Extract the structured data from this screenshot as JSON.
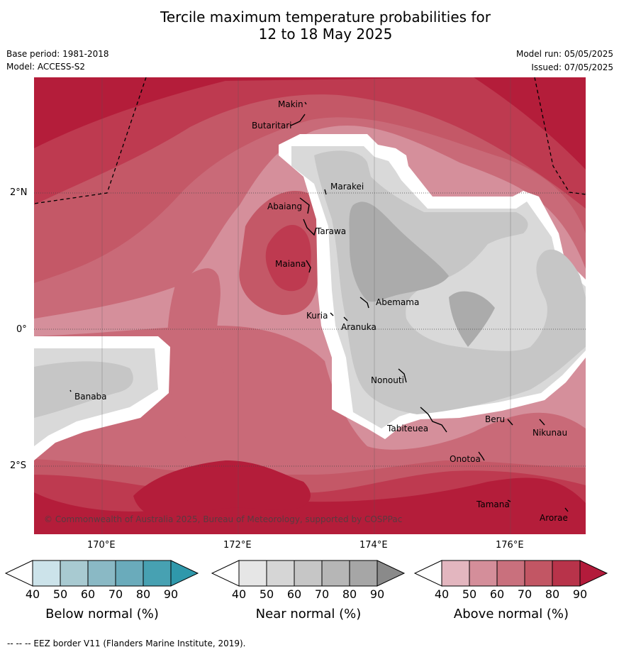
{
  "title_line1": "Tercile maximum temperature probabilities for",
  "title_line2": "12 to 18 May 2025",
  "base_period": "Base period: 1981-2018",
  "model": "Model: ACCESS-S2",
  "model_run": "Model run: 05/05/2025",
  "issued": "Issued: 07/05/2025",
  "lat_ticks": [
    "2°N",
    "0°",
    "2°S"
  ],
  "lon_ticks": [
    "170°E",
    "172°E",
    "174°E",
    "176°E"
  ],
  "places": [
    {
      "name": "Makin"
    },
    {
      "name": "Butaritari"
    },
    {
      "name": "Marakei"
    },
    {
      "name": "Abaiang"
    },
    {
      "name": "Tarawa"
    },
    {
      "name": "Maiana"
    },
    {
      "name": "Abemama"
    },
    {
      "name": "Kuria"
    },
    {
      "name": "Aranuka"
    },
    {
      "name": "Banaba"
    },
    {
      "name": "Nonouti"
    },
    {
      "name": "Tabiteuea"
    },
    {
      "name": "Beru"
    },
    {
      "name": "Nikunau"
    },
    {
      "name": "Onotoa"
    },
    {
      "name": "Tamana"
    },
    {
      "name": "Arorae"
    }
  ],
  "copyright": "© Commonwealth of Australia 2025, Bureau of Meteorology, supported by COSPPac",
  "colorbars": [
    {
      "title": "Below normal (%)",
      "ticks": [
        "40",
        "50",
        "60",
        "70",
        "80",
        "90"
      ],
      "colors": [
        "#ffffff",
        "#cce3ea",
        "#a8cad1",
        "#8ab9c5",
        "#6aabbb",
        "#47a1b2",
        "#2f98ab"
      ]
    },
    {
      "title": "Near normal (%)",
      "ticks": [
        "40",
        "50",
        "60",
        "70",
        "80",
        "90"
      ],
      "colors": [
        "#ffffff",
        "#e6e6e6",
        "#d6d6d6",
        "#c6c6c6",
        "#b6b6b6",
        "#a6a6a6",
        "#8a8a8a"
      ]
    },
    {
      "title": "Above normal (%)",
      "ticks": [
        "40",
        "50",
        "60",
        "70",
        "80",
        "90"
      ],
      "colors": [
        "#ffffff",
        "#e3b6bf",
        "#d48e9a",
        "#c9707d",
        "#c25664",
        "#b8334a",
        "#b31b3b"
      ]
    }
  ],
  "footer": "--  --  -- EEZ border V11 (Flanders Marine Institute, 2019)."
}
